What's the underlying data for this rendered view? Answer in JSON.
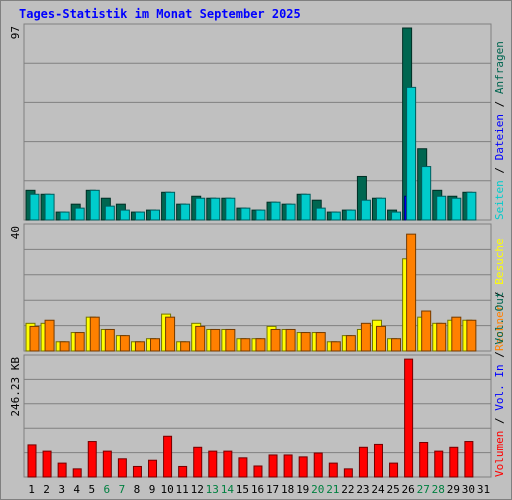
{
  "title": "Tages-Statistik im Monat September 2025",
  "colors": {
    "anfragen": "#006650",
    "dateien": "#0000ff",
    "seiten": "#00cccc",
    "besuche": "#ffff00",
    "rechner": "#ff8000",
    "volumen": "#ff0000",
    "grid": "#808080",
    "weekend_day": "#008040",
    "weekday": "#000000"
  },
  "chart_data": [
    {
      "type": "bar",
      "panel": "anfragen-dateien-seiten",
      "ymax_label": "97",
      "ylim": [
        0,
        97
      ],
      "grid": true,
      "legend_placement": "right (vertical)",
      "legend": [
        {
          "label": "Anfragen",
          "color": "#006650"
        },
        {
          "label": "Dateien",
          "color": "#0000ff"
        },
        {
          "label": "Seiten",
          "color": "#00cccc"
        }
      ],
      "categories": [
        "1",
        "2",
        "3",
        "4",
        "5",
        "6",
        "7",
        "8",
        "9",
        "10",
        "11",
        "12",
        "13",
        "14",
        "15",
        "16",
        "17",
        "18",
        "19",
        "20",
        "21",
        "22",
        "23",
        "24",
        "25",
        "26",
        "27",
        "28",
        "29",
        "30",
        "31"
      ],
      "series": [
        {
          "name": "Anfragen",
          "values": [
            15,
            13,
            4,
            8,
            15,
            11,
            8,
            4,
            5,
            14,
            8,
            12,
            11,
            11,
            6,
            5,
            9,
            8,
            13,
            10,
            4,
            5,
            22,
            11,
            5,
            97,
            36,
            15,
            12,
            14,
            null
          ]
        },
        {
          "name": "Dateien",
          "values": [
            0,
            0,
            0,
            0,
            0,
            0,
            0,
            0,
            0,
            0,
            0,
            0,
            0,
            0,
            0,
            0,
            0,
            0,
            0,
            0,
            0,
            0,
            0,
            0,
            0,
            12,
            0,
            0,
            0,
            0,
            null
          ]
        },
        {
          "name": "Seiten",
          "values": [
            13,
            13,
            4,
            6,
            15,
            7,
            5,
            4,
            5,
            14,
            8,
            11,
            11,
            11,
            6,
            5,
            9,
            8,
            13,
            6,
            4,
            5,
            10,
            11,
            4,
            67,
            27,
            12,
            11,
            14,
            null
          ]
        }
      ]
    },
    {
      "type": "bar",
      "panel": "besuche-rechner",
      "ymax_label": "40",
      "ylim": [
        0,
        40
      ],
      "grid": true,
      "legend_placement": "right (vertical)",
      "legend": [
        {
          "label": "Besuche",
          "color": "#ffff00"
        },
        {
          "label": "Rechner",
          "color": "#ff8000"
        }
      ],
      "categories": [
        "1",
        "2",
        "3",
        "4",
        "5",
        "6",
        "7",
        "8",
        "9",
        "10",
        "11",
        "12",
        "13",
        "14",
        "15",
        "16",
        "17",
        "18",
        "19",
        "20",
        "21",
        "22",
        "23",
        "24",
        "25",
        "26",
        "27",
        "28",
        "29",
        "30",
        "31"
      ],
      "series": [
        {
          "name": "Besuche",
          "values": [
            9,
            9,
            3,
            6,
            11,
            7,
            5,
            3,
            4,
            12,
            3,
            9,
            7,
            7,
            4,
            4,
            8,
            7,
            6,
            6,
            3,
            5,
            7,
            10,
            4,
            30,
            11,
            9,
            10,
            10,
            null
          ]
        },
        {
          "name": "Rechner",
          "values": [
            8,
            10,
            3,
            6,
            11,
            7,
            5,
            3,
            4,
            11,
            3,
            8,
            7,
            7,
            4,
            4,
            7,
            7,
            6,
            6,
            3,
            5,
            9,
            8,
            4,
            38,
            13,
            9,
            11,
            10,
            null
          ]
        }
      ]
    },
    {
      "type": "bar",
      "panel": "volumen",
      "ymax_label": "246.23 KB",
      "ylim": [
        0,
        246.23
      ],
      "grid": true,
      "legend_placement": "right (vertical)",
      "legend": [
        {
          "label": "Volumen",
          "color": "#ff0000"
        },
        {
          "label": "Vol. In",
          "color": "#0000ff"
        },
        {
          "label": "Vol. Out",
          "color": "#006650"
        }
      ],
      "categories": [
        "1",
        "2",
        "3",
        "4",
        "5",
        "6",
        "7",
        "8",
        "9",
        "10",
        "11",
        "12",
        "13",
        "14",
        "15",
        "16",
        "17",
        "18",
        "19",
        "20",
        "21",
        "22",
        "23",
        "24",
        "25",
        "26",
        "27",
        "28",
        "29",
        "30",
        "31"
      ],
      "series": [
        {
          "name": "Volumen",
          "values": [
            67,
            54,
            29,
            17,
            74,
            54,
            38,
            22,
            35,
            85,
            22,
            62,
            54,
            54,
            40,
            23,
            46,
            46,
            42,
            50,
            29,
            17,
            62,
            68,
            29,
            246,
            72,
            54,
            62,
            74,
            null
          ]
        }
      ]
    }
  ],
  "x_axis": {
    "days": [
      "1",
      "2",
      "3",
      "4",
      "5",
      "6",
      "7",
      "8",
      "9",
      "10",
      "11",
      "12",
      "13",
      "14",
      "15",
      "16",
      "17",
      "18",
      "19",
      "20",
      "21",
      "22",
      "23",
      "24",
      "25",
      "26",
      "27",
      "28",
      "29",
      "30",
      "31"
    ],
    "weekend_days": [
      "6",
      "7",
      "13",
      "14",
      "20",
      "21",
      "27",
      "28"
    ]
  },
  "separator": " / "
}
